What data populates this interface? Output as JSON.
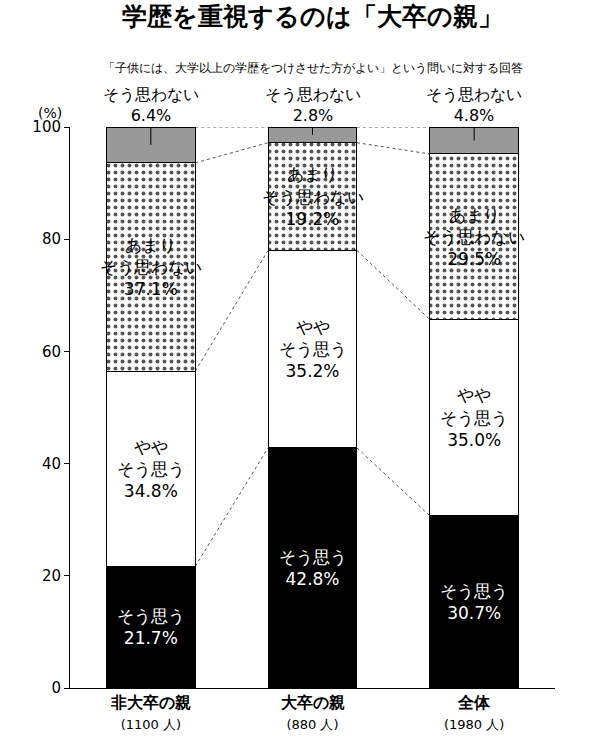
{
  "chart_data": {
    "type": "bar",
    "title": "学歴を重視するのは「大卒の親」",
    "subtitle": "「子供には、大学以上の学歴をつけさせた方がよい」という問いに対する回答",
    "ylabel": "(%)",
    "categories": [
      "非大卒の親",
      "大卒の親",
      "全体"
    ],
    "category_notes": [
      "(1100 人)",
      "(880 人)",
      "(1980 人)"
    ],
    "stacked": true,
    "data_labels": true,
    "grid": false,
    "ylim": [
      0,
      100
    ],
    "yticks": [
      0,
      20,
      40,
      60,
      80,
      100
    ],
    "series": [
      {
        "name": "そう思う",
        "color": "#000000",
        "values": [
          21.7,
          42.8,
          30.7
        ],
        "value_labels": [
          "21.7%",
          "42.8%",
          "30.7%"
        ]
      },
      {
        "name": "やや そう思う",
        "color": "#ffffff",
        "values": [
          34.8,
          35.2,
          35.0
        ],
        "value_labels": [
          "34.8%",
          "35.2%",
          "35.0%"
        ]
      },
      {
        "name": "あまり そう思わない",
        "color": "#ffffff",
        "marker": "dots",
        "values": [
          37.1,
          19.2,
          29.5
        ],
        "value_labels": [
          "37.1%",
          "19.2%",
          "29.5%"
        ]
      },
      {
        "name": "そう思わない",
        "color": "#999999",
        "values": [
          6.4,
          2.8,
          4.8
        ],
        "value_labels": [
          "6.4%",
          "2.8%",
          "4.8%"
        ]
      }
    ]
  }
}
